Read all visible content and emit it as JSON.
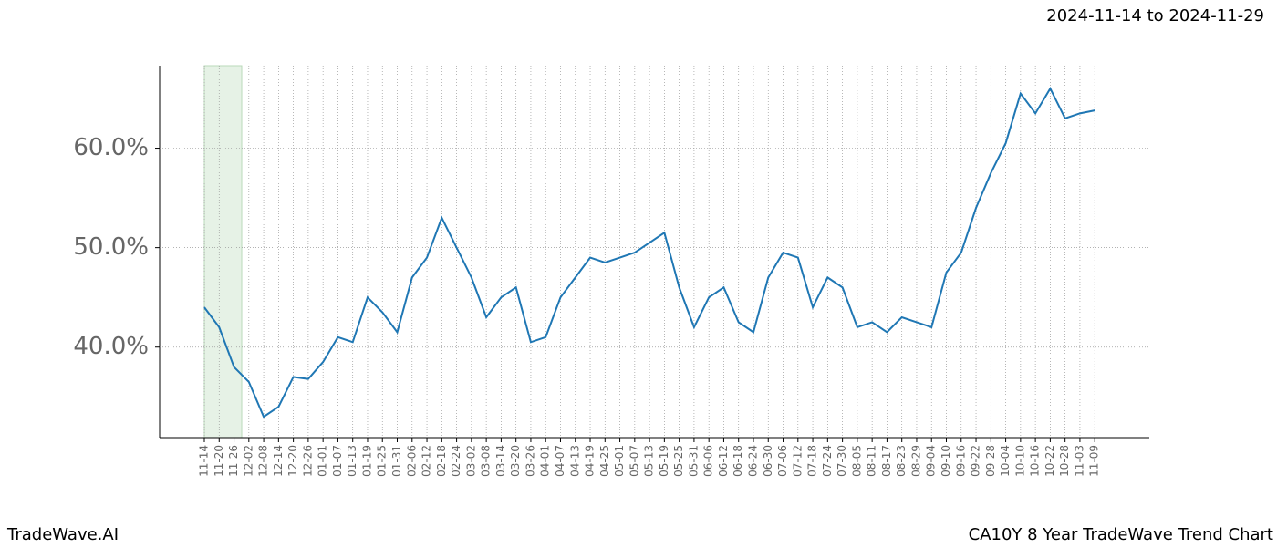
{
  "chart_data": {
    "type": "line",
    "title": "CA10Y 8 Year TradeWave Trend Chart",
    "subtitle": "2024-11-14 to 2024-11-29",
    "brand": "TradeWave.AI",
    "categories": [
      "11-14",
      "11-20",
      "11-26",
      "12-02",
      "12-08",
      "12-14",
      "12-20",
      "12-26",
      "01-01",
      "01-07",
      "01-13",
      "01-19",
      "01-25",
      "01-31",
      "02-06",
      "02-12",
      "02-18",
      "02-24",
      "03-02",
      "03-08",
      "03-14",
      "03-20",
      "03-26",
      "04-01",
      "04-07",
      "04-13",
      "04-19",
      "04-25",
      "05-01",
      "05-07",
      "05-13",
      "05-19",
      "05-25",
      "05-31",
      "06-06",
      "06-12",
      "06-18",
      "06-24",
      "06-30",
      "07-06",
      "07-12",
      "07-18",
      "07-24",
      "07-30",
      "08-05",
      "08-11",
      "08-17",
      "08-23",
      "08-29",
      "09-04",
      "09-10",
      "09-16",
      "09-22",
      "09-28",
      "10-04",
      "10-10",
      "10-16",
      "10-22",
      "10-28",
      "11-03",
      "11-09"
    ],
    "series": [
      {
        "name": "CA10Y",
        "color": "#1f77b4",
        "values": [
          44,
          42,
          38,
          36.5,
          33,
          34,
          37,
          36.8,
          38.5,
          41,
          40.5,
          45,
          43.5,
          41.5,
          47,
          49,
          53,
          50,
          47,
          43,
          45,
          46,
          40.5,
          41,
          45,
          47,
          49,
          48.5,
          49,
          49.5,
          50.5,
          51.5,
          46,
          42,
          45,
          46,
          42.5,
          41.5,
          47,
          49.5,
          49,
          44,
          47,
          46,
          42,
          42.5,
          41.5,
          43,
          42.5,
          42,
          47.5,
          49.5,
          54,
          57.5,
          60.5,
          65.5,
          63.5,
          66,
          63,
          63.5,
          63.8
        ]
      }
    ],
    "ylim": [
      30.9,
      68.3
    ],
    "yticks": [
      {
        "value": 40,
        "label": "40.0%"
      },
      {
        "value": 50,
        "label": "50.0%"
      },
      {
        "value": 60,
        "label": "60.0%"
      }
    ],
    "grid": true
  }
}
